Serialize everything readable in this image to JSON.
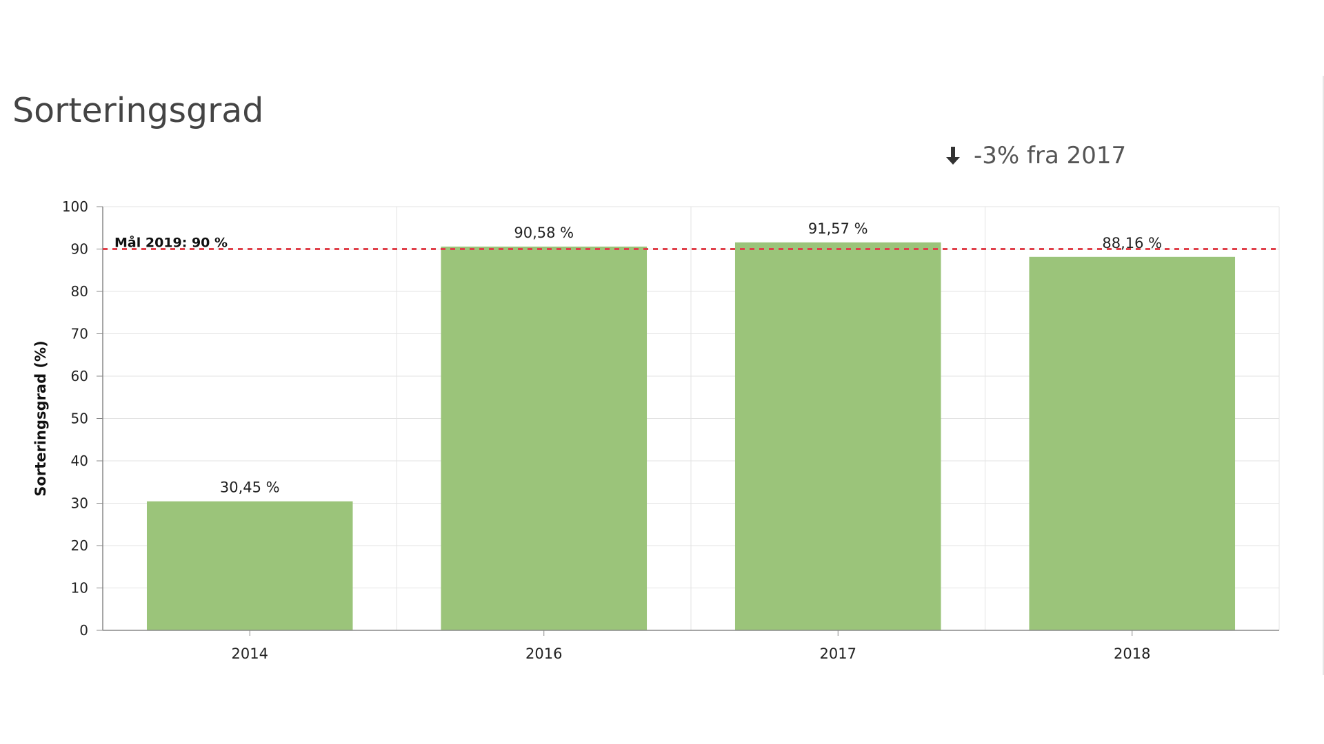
{
  "panel": {
    "title": "Sorteringsgrad",
    "trend": {
      "icon": "arrow-down-icon",
      "text": "-3% fra 2017"
    }
  },
  "chart_data": {
    "type": "bar",
    "categories": [
      "2014",
      "2016",
      "2017",
      "2018"
    ],
    "values": [
      30.45,
      90.58,
      91.57,
      88.16
    ],
    "data_labels": [
      "30,45 %",
      "90,58 %",
      "91,57 %",
      "88,16 %"
    ],
    "ylabel": "Sorteringsgrad (%)",
    "xlabel": "",
    "ylim": [
      0,
      100
    ],
    "yticks": [
      0,
      10,
      20,
      30,
      40,
      50,
      60,
      70,
      80,
      90,
      100
    ],
    "grid": true,
    "bar_color": "#9bc47a",
    "target_line": {
      "value": 90,
      "label": "Mål 2019: 90 %",
      "color": "#e0404a",
      "style": "dashed"
    }
  }
}
